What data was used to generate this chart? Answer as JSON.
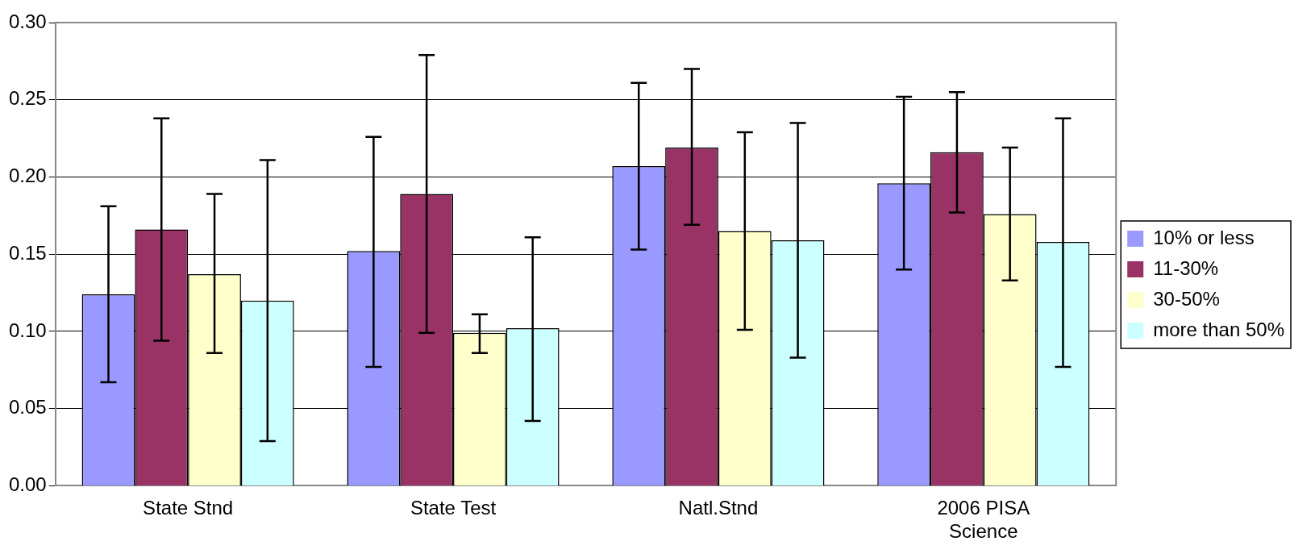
{
  "chart_data": {
    "type": "bar",
    "categories": [
      "State Stnd",
      "State Test",
      "Natl.Stnd",
      "2006 PISA Science"
    ],
    "series": [
      {
        "name": "10% or less",
        "color": "#9999ff",
        "values": [
          0.124,
          0.152,
          0.207,
          0.196
        ],
        "errors": [
          [
            0.067,
            0.181
          ],
          [
            0.077,
            0.226
          ],
          [
            0.153,
            0.261
          ],
          [
            0.14,
            0.252
          ]
        ]
      },
      {
        "name": "11-30%",
        "color": "#993366",
        "values": [
          0.166,
          0.189,
          0.219,
          0.216
        ],
        "errors": [
          [
            0.094,
            0.238
          ],
          [
            0.099,
            0.279
          ],
          [
            0.169,
            0.27
          ],
          [
            0.177,
            0.255
          ]
        ]
      },
      {
        "name": "30-50%",
        "color": "#ffffcc",
        "values": [
          0.137,
          0.099,
          0.165,
          0.176
        ],
        "errors": [
          [
            0.086,
            0.189
          ],
          [
            0.086,
            0.111
          ],
          [
            0.101,
            0.229
          ],
          [
            0.133,
            0.219
          ]
        ]
      },
      {
        "name": "more than 50%",
        "color": "#ccffff",
        "values": [
          0.12,
          0.102,
          0.159,
          0.158
        ],
        "errors": [
          [
            0.029,
            0.211
          ],
          [
            0.042,
            0.161
          ],
          [
            0.083,
            0.235
          ],
          [
            0.077,
            0.238
          ]
        ]
      }
    ],
    "ylim": [
      0,
      0.3
    ],
    "yticks": [
      {
        "value": 0,
        "label": "0.00"
      },
      {
        "value": 0.05,
        "label": "0.05"
      },
      {
        "value": 0.1,
        "label": "0.10"
      },
      {
        "value": 0.15,
        "label": "0.15"
      },
      {
        "value": 0.2,
        "label": "0.20"
      },
      {
        "value": 0.25,
        "label": "0.25"
      },
      {
        "value": 0.3,
        "label": "0.30"
      }
    ],
    "grid": "y",
    "legend": "right"
  }
}
